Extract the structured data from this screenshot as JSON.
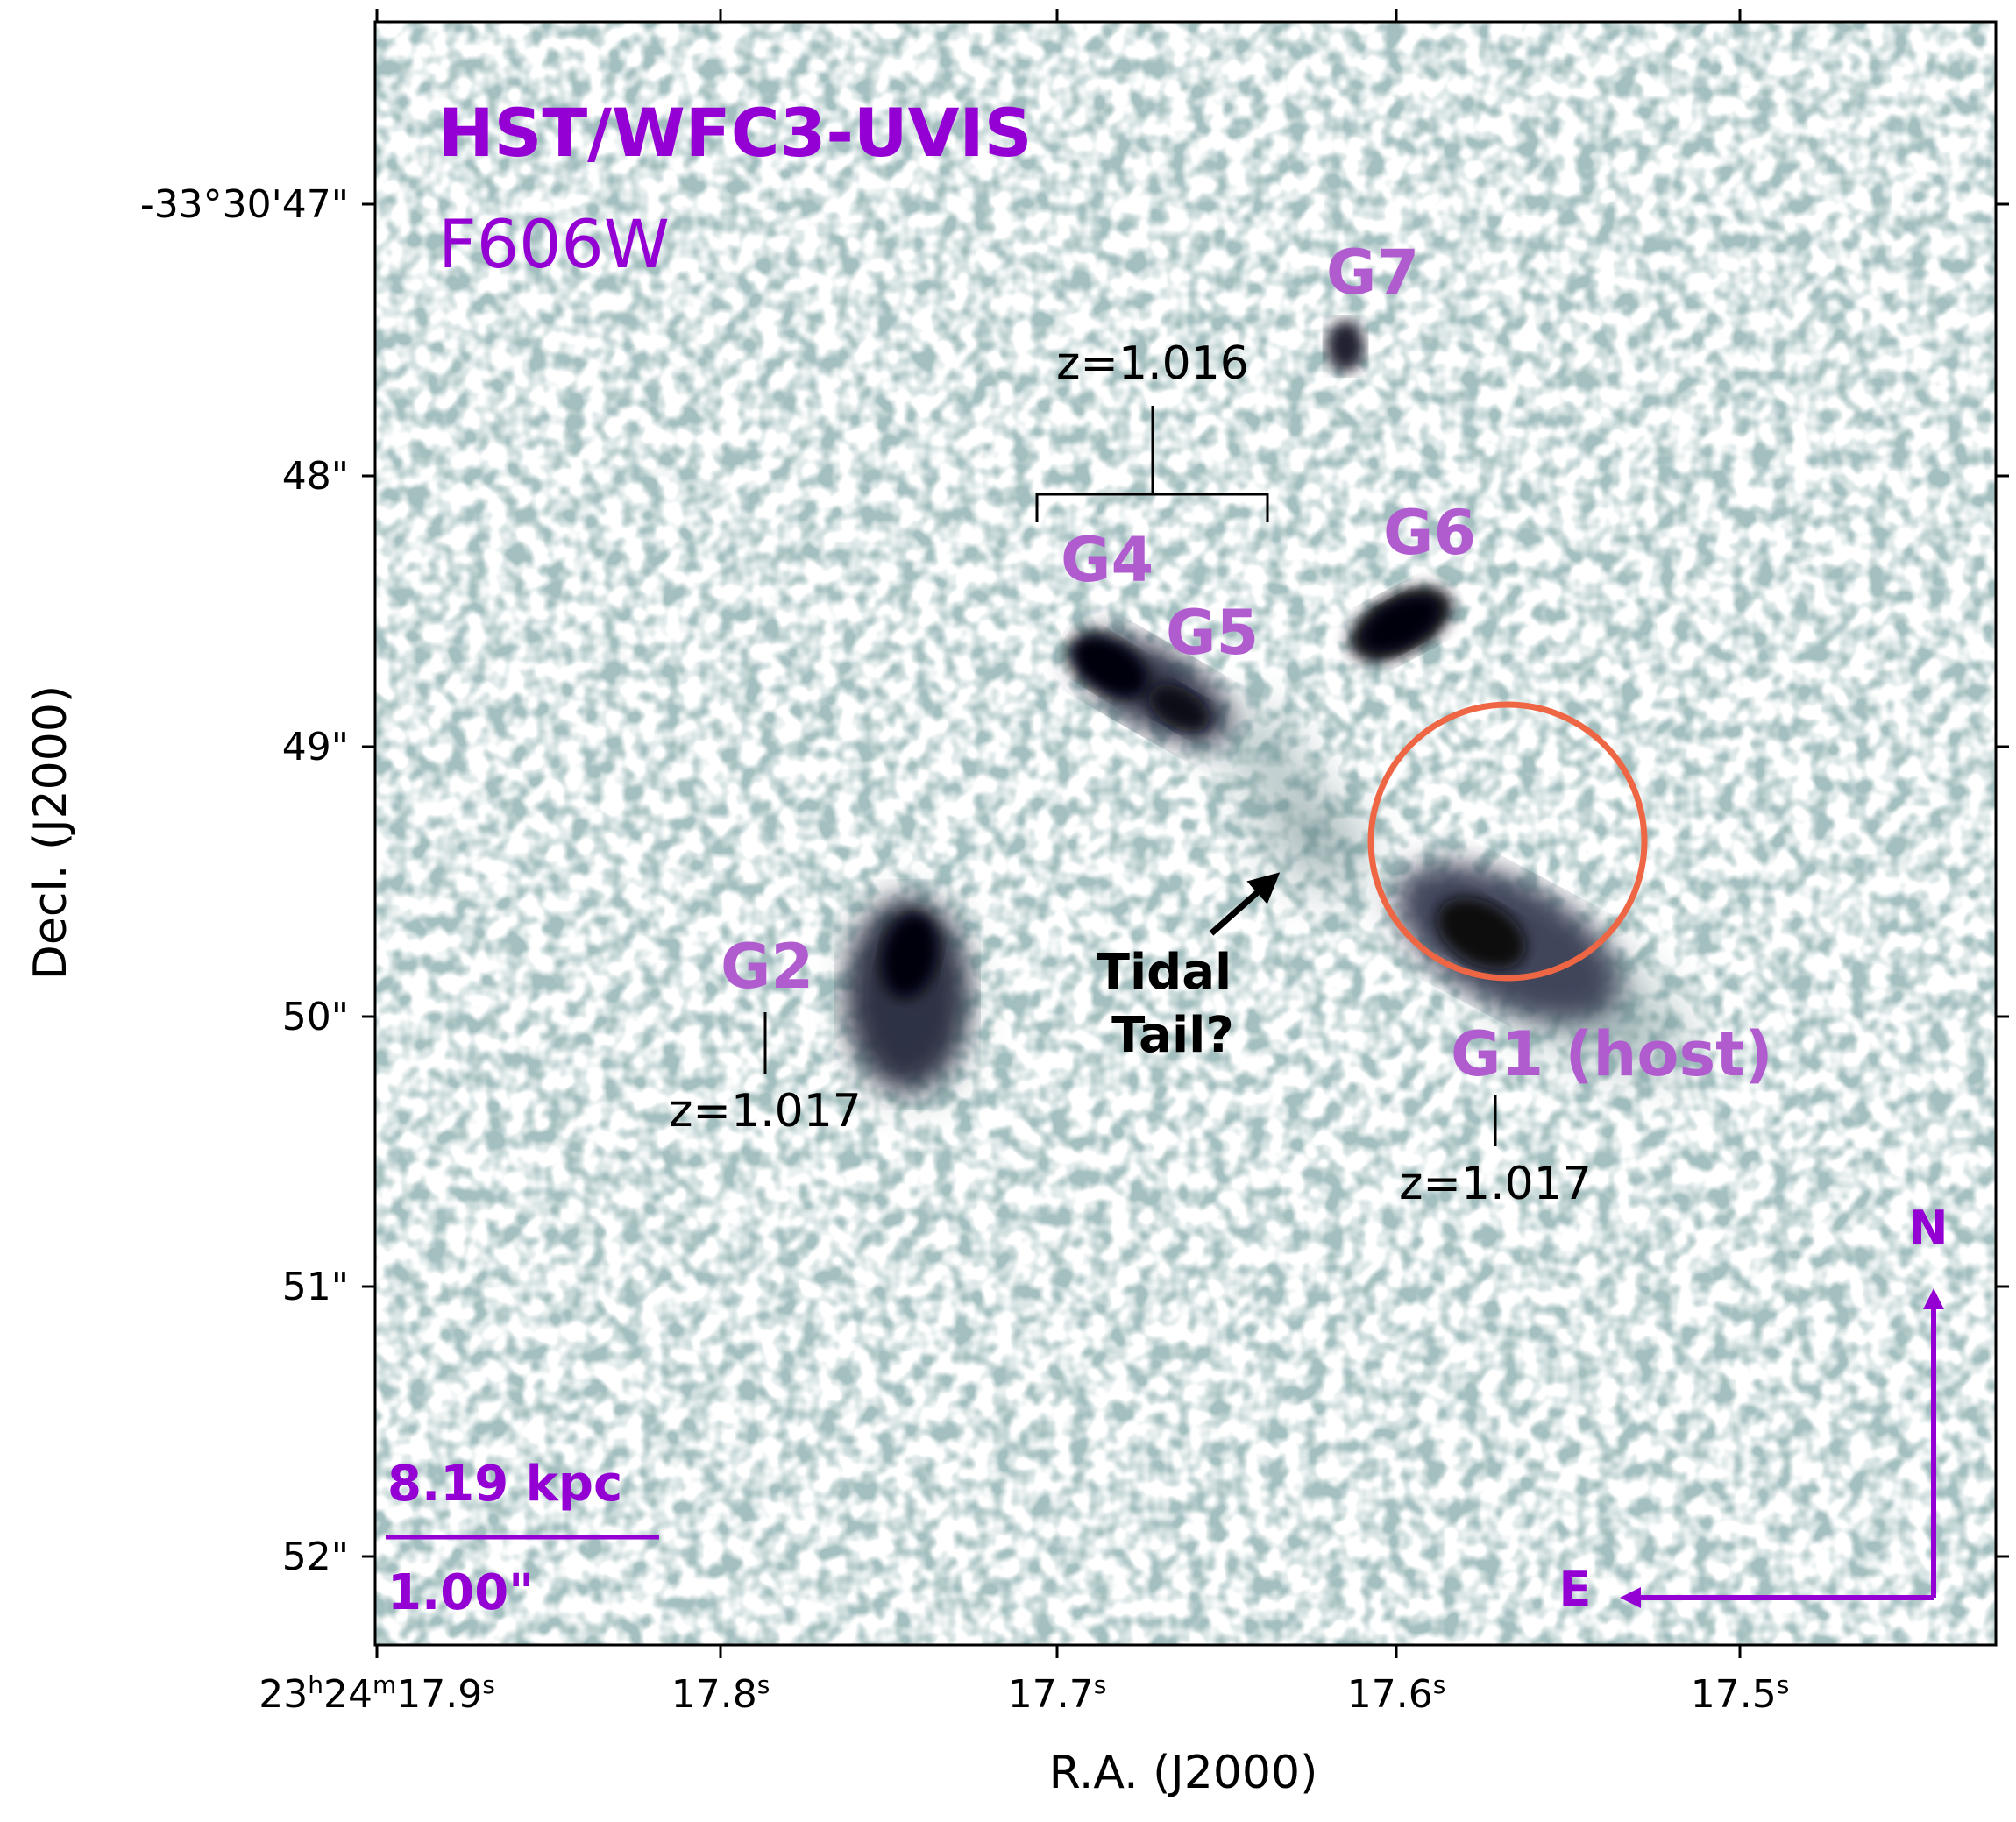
{
  "figure": {
    "instrument": "HST/WFC3-UVIS",
    "filter": "F606W",
    "colors": {
      "title": "#9400d3",
      "galaxy_labels": "#b05ccf",
      "circle": "#ee6644",
      "compass": "#9400d3",
      "image_dark": "#0a0a14",
      "image_mid": "#5a7f80",
      "image_light": "#c5dada"
    }
  },
  "axes": {
    "xlabel": "R.A. (J2000)",
    "ylabel": "Decl. (J2000)",
    "xticks": [
      {
        "base": "23",
        "h": "h",
        "m1": "24",
        "m": "m",
        "s1": "17.9",
        "s": "s"
      },
      {
        "s1": "17.8",
        "s": "s"
      },
      {
        "s1": "17.7",
        "s": "s"
      },
      {
        "s1": "17.6",
        "s": "s"
      },
      {
        "s1": "17.5",
        "s": "s"
      }
    ],
    "yticks": [
      "-33°30'47\"",
      "48\"",
      "49\"",
      "50\"",
      "51\"",
      "52\""
    ]
  },
  "labels": {
    "g1": "G1 (host)",
    "g2": "G2",
    "g4": "G4",
    "g5": "G5",
    "g6": "G6",
    "g7": "G7",
    "z_g45": "z=1.016",
    "z_g2": "z=1.017",
    "z_g1": "z=1.017",
    "tidal_1": "Tidal",
    "tidal_2": "Tail?"
  },
  "scalebar": {
    "physical": "8.19 kpc",
    "angular": "1.00\""
  },
  "compass": {
    "north": "N",
    "east": "E"
  }
}
